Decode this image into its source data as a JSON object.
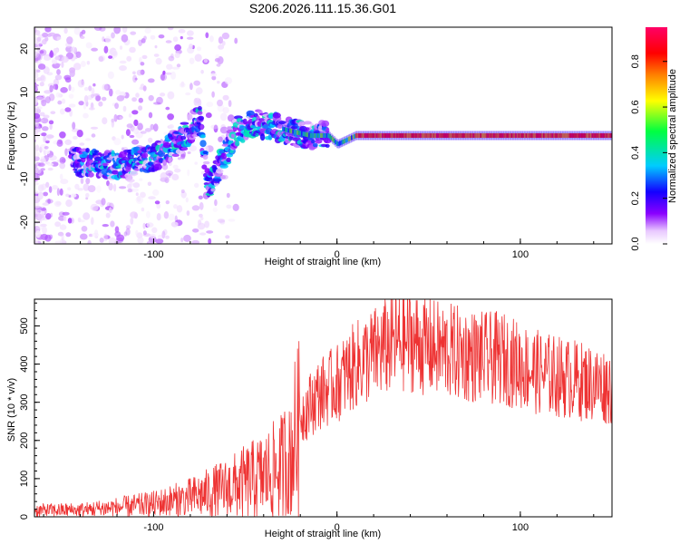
{
  "title": "S206.2026.111.15.36.G01",
  "chart_data": [
    {
      "type": "heatmap",
      "xlabel": "Height of straight line (km)",
      "ylabel": "Frequency (Hz)",
      "xlim": [
        -165,
        150
      ],
      "ylim": [
        -25,
        25
      ],
      "xticks": [
        -100,
        0,
        100
      ],
      "yticks": [
        -20,
        -10,
        0,
        10,
        20
      ],
      "colorbar": {
        "label": "Normalized spectral amplitude",
        "range": [
          0,
          0.95
        ],
        "ticks": [
          0.0,
          0.2,
          0.4,
          0.6,
          0.8
        ],
        "colormap": [
          "#ffffff",
          "#e8c8ff",
          "#8a00ff",
          "#1400ff",
          "#00ccff",
          "#00ff40",
          "#ffff00",
          "#ff8000",
          "#ff0000",
          "#ff0066"
        ]
      },
      "ridge": {
        "description_points_x": [
          -140,
          -120,
          -100,
          -85,
          -75,
          -70,
          -65,
          -55,
          -45,
          -35,
          -25,
          -15,
          -5,
          0,
          10,
          150
        ],
        "description_points_y": [
          -6,
          -7,
          -5,
          -1,
          4,
          -12,
          -8,
          1,
          3,
          2,
          1,
          0,
          0,
          -2,
          0,
          0
        ]
      }
    },
    {
      "type": "line",
      "xlabel": "Height of straight line (km)",
      "ylabel": "SNR (10 * v/v)",
      "xlim": [
        -165,
        150
      ],
      "ylim": [
        0,
        570
      ],
      "xticks": [
        -100,
        0,
        100
      ],
      "yticks": [
        0,
        100,
        200,
        300,
        400,
        500
      ],
      "series": [
        {
          "name": "SNR",
          "color": "#ee3333",
          "envelope_x": [
            -165,
            -140,
            -120,
            -100,
            -80,
            -60,
            -40,
            -30,
            -25,
            -20,
            -10,
            0,
            10,
            20,
            30,
            40,
            50,
            60,
            70,
            80,
            90,
            100,
            110,
            120,
            130,
            140,
            150
          ],
          "envelope_y": [
            20,
            22,
            30,
            40,
            60,
            90,
            130,
            160,
            220,
            280,
            340,
            370,
            420,
            450,
            480,
            490,
            470,
            460,
            450,
            440,
            440,
            420,
            400,
            390,
            380,
            370,
            360
          ]
        }
      ]
    }
  ]
}
